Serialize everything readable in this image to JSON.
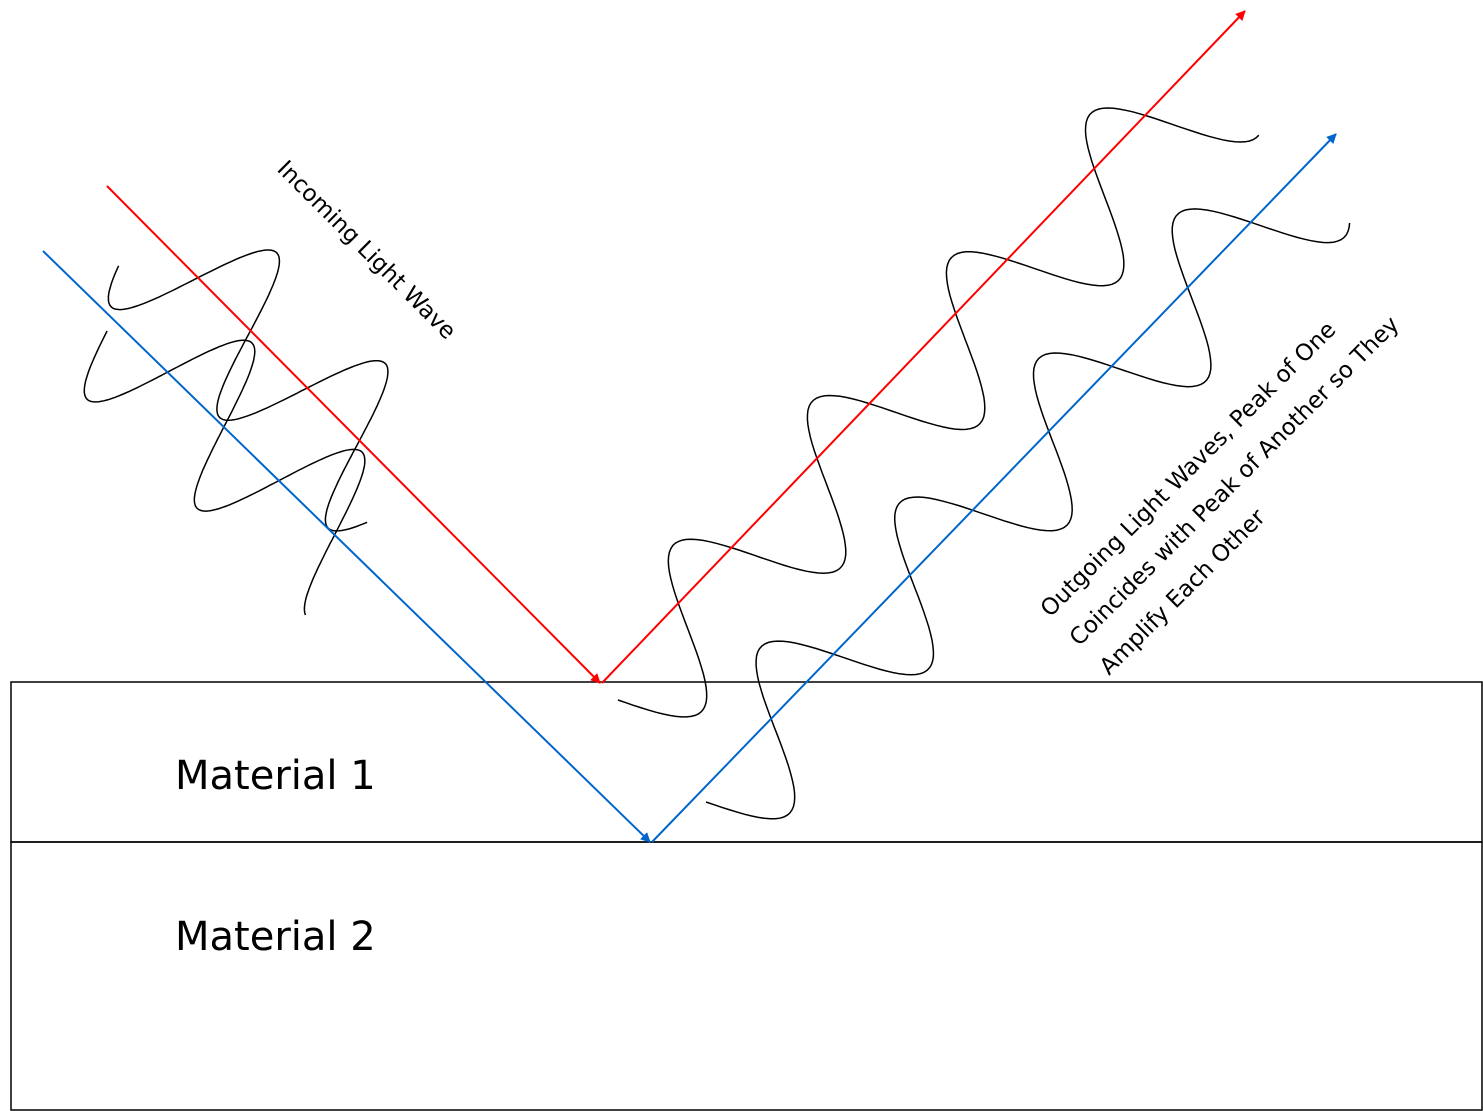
{
  "labels": {
    "incoming": "Incoming Light Wave",
    "outgoing": [
      "Outgoing Light Waves, Peak of One",
      "Coincides with Peak of Another so They",
      "Amplify Each Other"
    ],
    "material_1": "Material 1",
    "material_2": "Material 2"
  },
  "colors": {
    "ray_1": "#ff0000",
    "ray_2": "#0066cc",
    "wave": "#000000",
    "boundary": "#000000",
    "background": "#ffffff"
  }
}
